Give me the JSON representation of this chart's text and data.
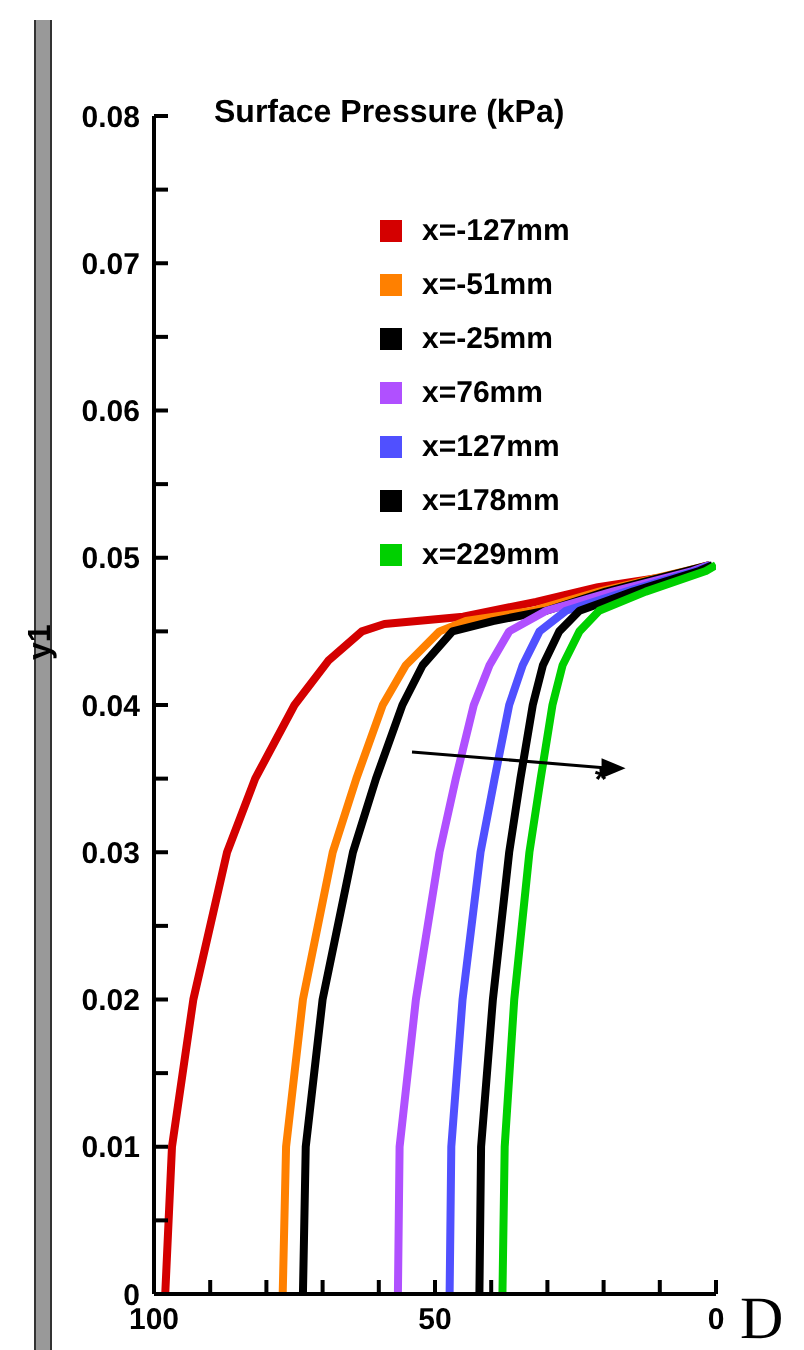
{
  "chart_data": {
    "type": "line",
    "ylabel": "y1",
    "legend_title": "Surface Pressure (kPa)",
    "legend": "top right",
    "marker": "none",
    "line_style": "solid",
    "grid": false,
    "xlim": [
      100,
      0
    ],
    "xticks": [
      100,
      {
        "value": 90,
        "label": null
      },
      {
        "value": 80,
        "label": null
      },
      {
        "value": 70,
        "label": null
      },
      {
        "value": 60,
        "label": null
      },
      50,
      {
        "value": 40,
        "label": null
      },
      {
        "value": 30,
        "label": null
      },
      {
        "value": 20,
        "label": null
      },
      {
        "value": 10,
        "label": null
      },
      0
    ],
    "ylim": [
      0,
      0.08
    ],
    "yticks": [
      0,
      {
        "value": 0.005,
        "label": null
      },
      0.01,
      {
        "value": 0.015,
        "label": null
      },
      0.02,
      {
        "value": 0.025,
        "label": null
      },
      0.03,
      {
        "value": 0.035,
        "label": null
      },
      0.04,
      {
        "value": 0.045,
        "label": null
      },
      0.05,
      {
        "value": 0.055,
        "label": null
      },
      0.06,
      {
        "value": 0.065,
        "label": null
      },
      0.07,
      {
        "value": 0.075,
        "label": null
      },
      0.08
    ],
    "annotations": [
      "*",
      "D"
    ],
    "series": [
      {
        "name": "x=-127mm",
        "color": "#d40000",
        "x": [
          98,
          96.8,
          93,
          87,
          82,
          75,
          69,
          63,
          59,
          45,
          32,
          21,
          4,
          1
        ],
        "values": [
          0,
          0.01,
          0.02,
          0.03,
          0.035,
          0.04,
          0.043,
          0.045,
          0.0455,
          0.046,
          0.047,
          0.048,
          0.049,
          0.0495
        ]
      },
      {
        "name": "x=-51mm",
        "color": "#ff8000",
        "x": [
          77.1,
          76.5,
          73.5,
          68.2,
          64,
          59.3,
          55.2,
          49.2,
          44.5,
          32.6,
          20.8,
          5.3,
          1.2
        ],
        "values": [
          0,
          0.01,
          0.02,
          0.03,
          0.035,
          0.04,
          0.0427,
          0.045,
          0.0457,
          0.0464,
          0.0477,
          0.0491,
          0.0495
        ]
      },
      {
        "name": "x=-25mm",
        "color": "#000000",
        "x": [
          73.5,
          73,
          70,
          64.6,
          60.5,
          55.8,
          52.2,
          46.9,
          39.7,
          30.2,
          19.6,
          5.3,
          1.2
        ],
        "values": [
          0,
          0.01,
          0.02,
          0.03,
          0.035,
          0.04,
          0.0427,
          0.045,
          0.0457,
          0.0464,
          0.0477,
          0.0491,
          0.0495
        ]
      },
      {
        "name": "x=76mm",
        "color": "#b050ff",
        "x": [
          56.6,
          56.3,
          53.4,
          49.2,
          46.3,
          43.1,
          40.3,
          36.8,
          30.2,
          18.4,
          4.2,
          1.2
        ],
        "values": [
          0,
          0.01,
          0.02,
          0.03,
          0.035,
          0.04,
          0.0427,
          0.045,
          0.0464,
          0.0477,
          0.0491,
          0.0495
        ]
      },
      {
        "name": "x=127mm",
        "color": "#5050ff",
        "x": [
          47.4,
          47.1,
          45.1,
          41.9,
          39.4,
          36.8,
          34.4,
          31.4,
          26.7,
          16,
          3.6,
          0.8
        ],
        "values": [
          0,
          0.01,
          0.02,
          0.03,
          0.035,
          0.04,
          0.0427,
          0.045,
          0.0464,
          0.0477,
          0.0491,
          0.0495
        ]
      },
      {
        "name": "x=178mm",
        "color": "#000000",
        "x": [
          42.1,
          41.8,
          39.7,
          36.8,
          34.8,
          32.6,
          30.8,
          27.9,
          24.3,
          14.8,
          3,
          0.6
        ],
        "values": [
          0,
          0.01,
          0.02,
          0.03,
          0.035,
          0.04,
          0.0427,
          0.045,
          0.0464,
          0.0477,
          0.0491,
          0.0495
        ]
      },
      {
        "name": "x=229mm",
        "color": "#00d000",
        "x": [
          38,
          37.6,
          35.9,
          33.2,
          31.2,
          29.1,
          27.3,
          24.3,
          20.8,
          12.5,
          1.8,
          0
        ],
        "values": [
          0,
          0.01,
          0.02,
          0.03,
          0.035,
          0.04,
          0.0427,
          0.045,
          0.0464,
          0.0477,
          0.0491,
          0.0495
        ]
      }
    ]
  }
}
